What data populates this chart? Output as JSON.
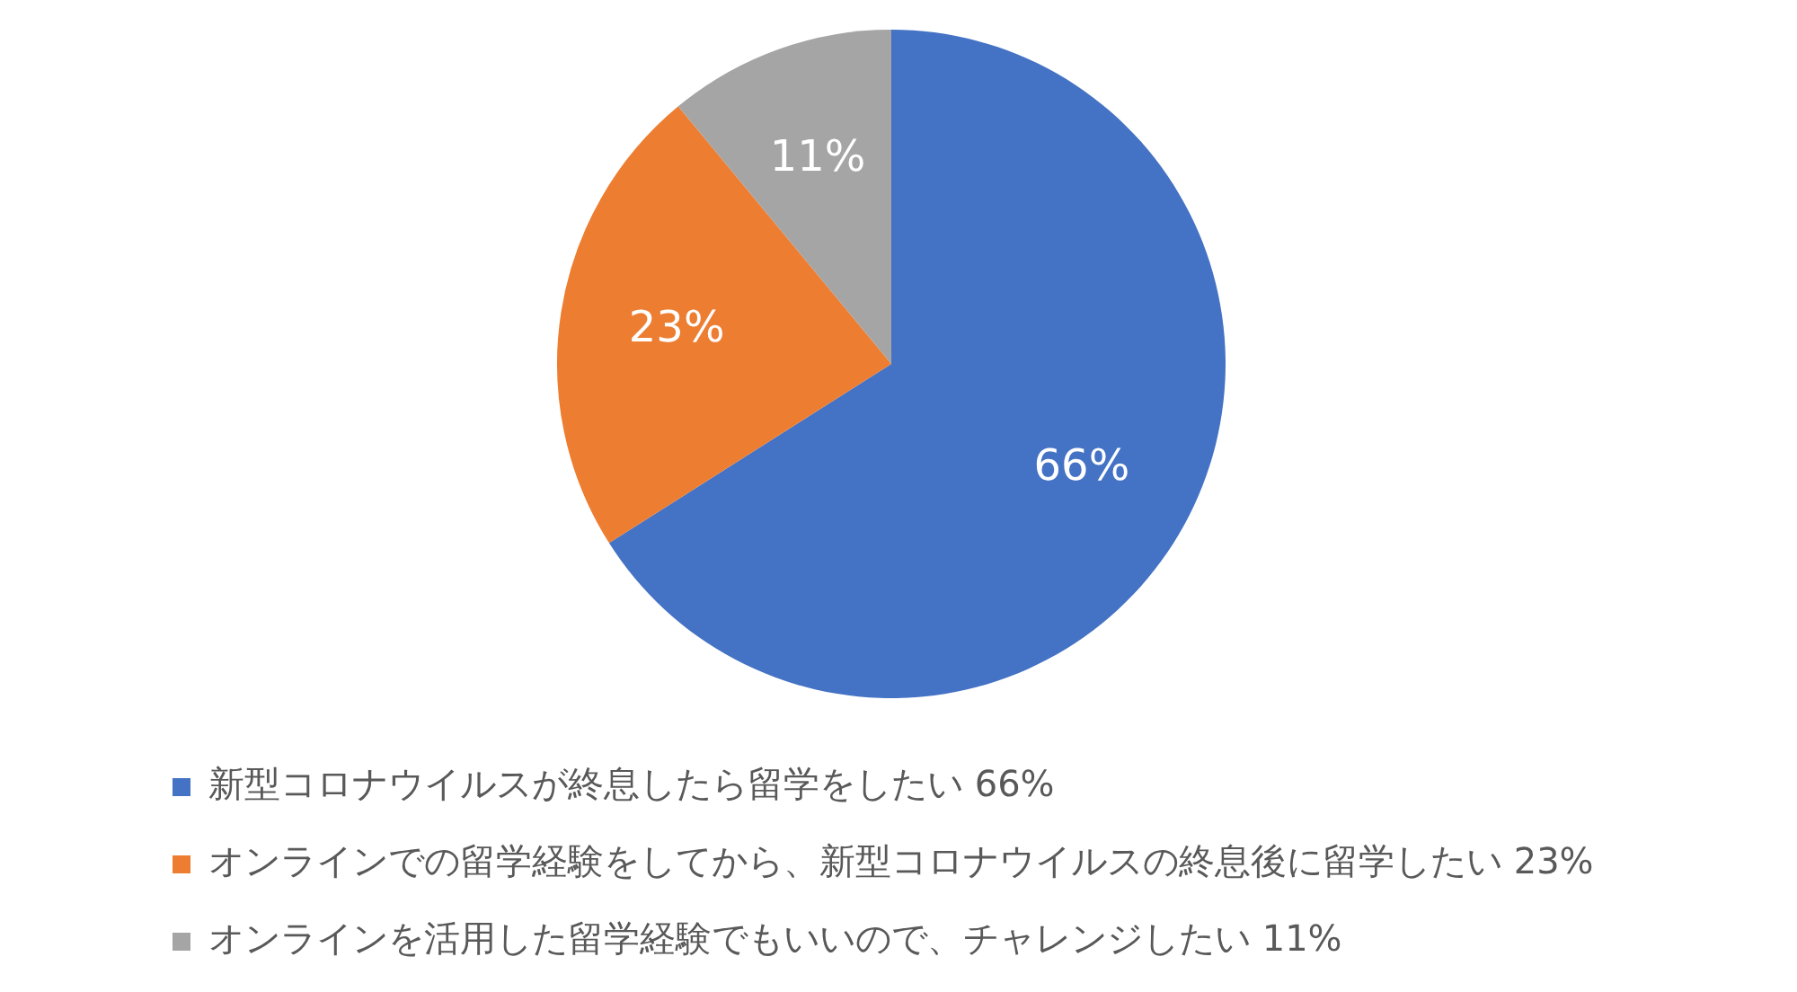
{
  "chart_data": {
    "type": "pie",
    "categories": [
      "新型コロナウイルスが終息したら留学をしたい 66%",
      "オンラインでの留学経験をしてから、新型コロナウイルスの終息後に留学したい 23%",
      "オンラインを活用した留学経験でもいいので、チャレンジしたい 11%"
    ],
    "values": [
      66,
      23,
      11
    ],
    "colors": [
      "#4472c4",
      "#ed7d31",
      "#a5a5a5"
    ],
    "value_labels": [
      "66%",
      "23%",
      "11%"
    ],
    "legend": "bottom left"
  }
}
